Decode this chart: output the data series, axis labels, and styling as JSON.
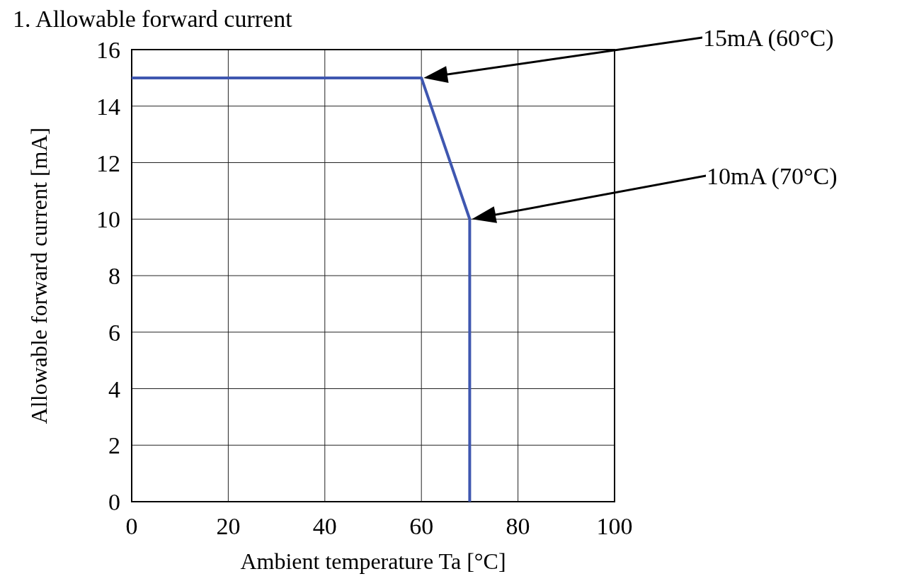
{
  "chart_data": {
    "type": "line",
    "title": "1. Allowable forward current",
    "xlabel": "Ambient temperature Ta [°C]",
    "ylabel": "Allowable forward current [mA]",
    "x": [
      0,
      60,
      70,
      70
    ],
    "series": [
      {
        "color": "#3f57b0",
        "values": [
          15,
          15,
          10,
          0
        ]
      }
    ],
    "xlim": [
      0,
      100
    ],
    "xticks": [
      0,
      20,
      40,
      60,
      80,
      100
    ],
    "ylim": [
      0,
      16
    ],
    "yticks": [
      0,
      2,
      4,
      6,
      8,
      10,
      12,
      14,
      16
    ],
    "grid": true,
    "marker": "none",
    "line_style": "solid",
    "annotations": [
      "15mA (60°C)",
      "10mA (70°C)"
    ]
  }
}
